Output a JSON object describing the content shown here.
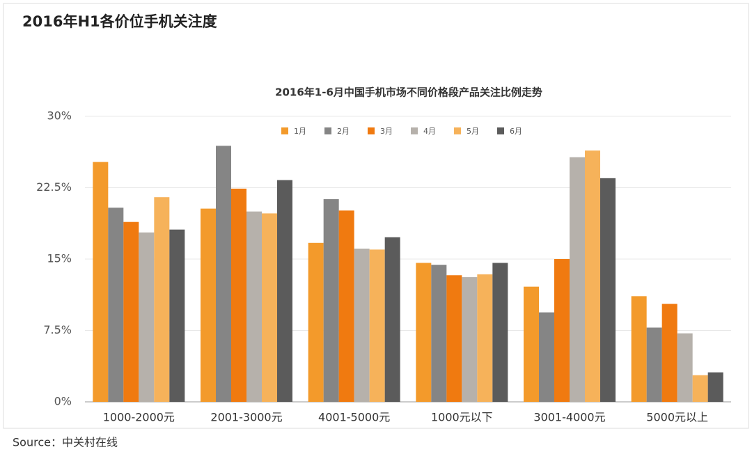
{
  "header": {
    "title": "2016年H1各价位手机关注度"
  },
  "source": "Source：中关村在线",
  "chart_data": {
    "type": "bar",
    "title": "2016年1-6月中国手机市场不同价格段产品关注比例走势",
    "categories": [
      "1000-2000元",
      "2001-3000元",
      "4001-5000元",
      "1000元以下",
      "3001-4000元",
      "5000元以上"
    ],
    "series": [
      {
        "name": "1月",
        "color": "#f39a2b",
        "values": [
          25.2,
          20.3,
          16.7,
          14.6,
          12.1,
          11.1
        ]
      },
      {
        "name": "2月",
        "color": "#858585",
        "values": [
          20.4,
          26.9,
          21.3,
          14.4,
          9.4,
          7.8
        ]
      },
      {
        "name": "3月",
        "color": "#f07a10",
        "values": [
          18.9,
          22.4,
          20.1,
          13.3,
          15.0,
          10.3
        ]
      },
      {
        "name": "4月",
        "color": "#b6b1ab",
        "values": [
          17.8,
          20.0,
          16.1,
          13.1,
          25.7,
          7.2
        ]
      },
      {
        "name": "5月",
        "color": "#f6b25a",
        "values": [
          21.5,
          19.8,
          16.0,
          13.4,
          26.4,
          2.8
        ]
      },
      {
        "name": "6月",
        "color": "#5b5b5b",
        "values": [
          18.1,
          23.3,
          17.3,
          14.6,
          23.5,
          3.1
        ]
      }
    ],
    "ylim": [
      0,
      30
    ],
    "yticks": [
      {
        "value": 0,
        "label": "0%"
      },
      {
        "value": 7.5,
        "label": "7.5%"
      },
      {
        "value": 15,
        "label": "15%"
      },
      {
        "value": 22.5,
        "label": "22.5%"
      },
      {
        "value": 30,
        "label": "30%"
      }
    ],
    "grid": true,
    "legend": "top"
  }
}
